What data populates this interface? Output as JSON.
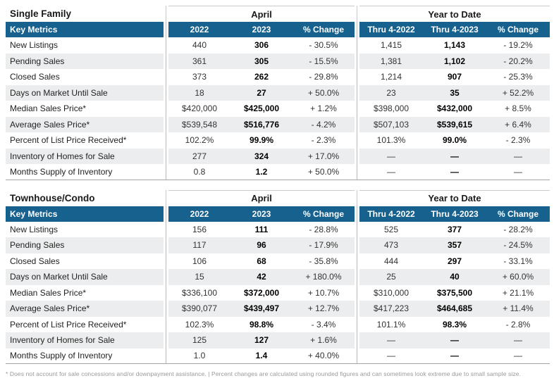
{
  "accent_color": "#17618F",
  "stripe_color": "#ECEDEE",
  "tables": [
    {
      "section_title": "Single Family",
      "groups": [
        "April",
        "Year to Date"
      ],
      "header": [
        "Key Metrics",
        "2022",
        "2023",
        "% Change",
        "Thru 4-2022",
        "Thru 4-2023",
        "% Change"
      ],
      "rows": [
        [
          "New Listings",
          "440",
          "306",
          "- 30.5%",
          "1,415",
          "1,143",
          "- 19.2%"
        ],
        [
          "Pending Sales",
          "361",
          "305",
          "- 15.5%",
          "1,381",
          "1,102",
          "- 20.2%"
        ],
        [
          "Closed Sales",
          "373",
          "262",
          "- 29.8%",
          "1,214",
          "907",
          "- 25.3%"
        ],
        [
          "Days on Market Until Sale",
          "18",
          "27",
          "+ 50.0%",
          "23",
          "35",
          "+ 52.2%"
        ],
        [
          "Median Sales Price*",
          "$420,000",
          "$425,000",
          "+ 1.2%",
          "$398,000",
          "$432,000",
          "+ 8.5%"
        ],
        [
          "Average Sales Price*",
          "$539,548",
          "$516,776",
          "- 4.2%",
          "$507,103",
          "$539,615",
          "+ 6.4%"
        ],
        [
          "Percent of List Price Received*",
          "102.2%",
          "99.9%",
          "- 2.3%",
          "101.3%",
          "99.0%",
          "- 2.3%"
        ],
        [
          "Inventory of Homes for Sale",
          "277",
          "324",
          "+ 17.0%",
          "—",
          "—",
          "—"
        ],
        [
          "Months Supply of Inventory",
          "0.8",
          "1.2",
          "+ 50.0%",
          "—",
          "—",
          "—"
        ]
      ]
    },
    {
      "section_title": "Townhouse/Condo",
      "groups": [
        "April",
        "Year to Date"
      ],
      "header": [
        "Key Metrics",
        "2022",
        "2023",
        "% Change",
        "Thru 4-2022",
        "Thru 4-2023",
        "% Change"
      ],
      "rows": [
        [
          "New Listings",
          "156",
          "111",
          "- 28.8%",
          "525",
          "377",
          "- 28.2%"
        ],
        [
          "Pending Sales",
          "117",
          "96",
          "- 17.9%",
          "473",
          "357",
          "- 24.5%"
        ],
        [
          "Closed Sales",
          "106",
          "68",
          "- 35.8%",
          "444",
          "297",
          "- 33.1%"
        ],
        [
          "Days on Market Until Sale",
          "15",
          "42",
          "+ 180.0%",
          "25",
          "40",
          "+ 60.0%"
        ],
        [
          "Median Sales Price*",
          "$336,100",
          "$372,000",
          "+ 10.7%",
          "$310,000",
          "$375,500",
          "+ 21.1%"
        ],
        [
          "Average Sales Price*",
          "$390,077",
          "$439,497",
          "+ 12.7%",
          "$417,223",
          "$464,685",
          "+ 11.4%"
        ],
        [
          "Percent of List Price Received*",
          "102.3%",
          "98.8%",
          "- 3.4%",
          "101.1%",
          "98.3%",
          "- 2.8%"
        ],
        [
          "Inventory of Homes for Sale",
          "125",
          "127",
          "+ 1.6%",
          "—",
          "—",
          "—"
        ],
        [
          "Months Supply of Inventory",
          "1.0",
          "1.4",
          "+ 40.0%",
          "—",
          "—",
          "—"
        ]
      ]
    }
  ],
  "footnote": "* Does not account for sale concessions and/or downpayment assistance. | Percent changes are calculated using rounded figures and can sometimes look extreme due to small sample size."
}
